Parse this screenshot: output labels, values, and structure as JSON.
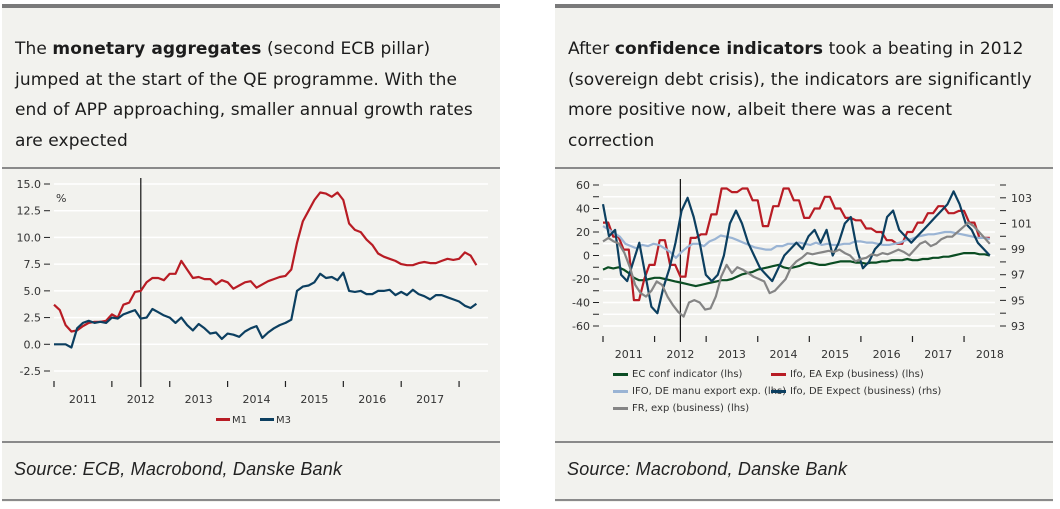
{
  "left": {
    "headline": {
      "before": "The ",
      "bold": "monetary aggregates",
      "after": " (second ECB pillar) jumped at the start of the QE programme. With the end of APP approaching, smaller annual growth rates are expected"
    },
    "source": "Source: ECB, Macrobond, Danske Bank"
  },
  "right": {
    "headline": {
      "before": "After ",
      "bold": "confidence indicators",
      "after": " took a beating in 2012 (sovereign debt crisis), the indicators are significantly more positive now, albeit there was a recent correction"
    },
    "source": "Source: Macrobond, Danske Bank"
  },
  "chart_data": [
    {
      "type": "line",
      "title": "",
      "xlabel": "",
      "ylabel": "%",
      "ylim": [
        -2.5,
        15.0
      ],
      "yticks": [
        "15.0",
        "12.5",
        "10.0",
        "7.5",
        "5.0",
        "2.5",
        "0.0",
        "-2.5"
      ],
      "ytick_values": [
        15,
        12.5,
        10,
        7.5,
        5,
        2.5,
        0,
        -2.5
      ],
      "xlim": [
        2010.5,
        2018.0
      ],
      "x_tick_labels": [
        "2011",
        "2012",
        "2013",
        "2014",
        "2015",
        "2016",
        "2017"
      ],
      "x_tick_positions": [
        2011,
        2012,
        2013,
        2014,
        2015,
        2016,
        2017
      ],
      "vertical_marker": 2012.0,
      "grid": true,
      "legend_position": "bottom",
      "colors": {
        "M1": "#b81c24",
        "M3": "#0c3f60"
      },
      "x": [
        2010.5,
        2010.6,
        2010.7,
        2010.8,
        2010.9,
        2011.0,
        2011.1,
        2011.2,
        2011.3,
        2011.4,
        2011.5,
        2011.6,
        2011.7,
        2011.8,
        2011.9,
        2012.0,
        2012.1,
        2012.2,
        2012.3,
        2012.4,
        2012.5,
        2012.6,
        2012.7,
        2012.8,
        2012.9,
        2013.0,
        2013.1,
        2013.2,
        2013.3,
        2013.4,
        2013.5,
        2013.6,
        2013.7,
        2013.8,
        2013.9,
        2014.0,
        2014.1,
        2014.2,
        2014.3,
        2014.4,
        2014.5,
        2014.6,
        2014.7,
        2014.8,
        2014.9,
        2015.0,
        2015.1,
        2015.2,
        2015.3,
        2015.4,
        2015.5,
        2015.6,
        2015.7,
        2015.8,
        2015.9,
        2016.0,
        2016.1,
        2016.2,
        2016.3,
        2016.4,
        2016.5,
        2016.6,
        2016.7,
        2016.8,
        2016.9,
        2017.0,
        2017.1,
        2017.2,
        2017.3,
        2017.4,
        2017.5,
        2017.6,
        2017.7,
        2017.8
      ],
      "series": [
        {
          "name": "M1",
          "values": [
            3.7,
            3.2,
            1.8,
            1.2,
            1.3,
            1.7,
            2.0,
            2.1,
            2.1,
            2.2,
            2.8,
            2.5,
            3.7,
            3.9,
            4.9,
            5.0,
            5.8,
            6.2,
            6.2,
            6.0,
            6.6,
            6.6,
            7.8,
            7.0,
            6.2,
            6.3,
            6.1,
            6.1,
            5.6,
            6.0,
            5.8,
            5.2,
            5.5,
            5.8,
            5.9,
            5.3,
            5.6,
            5.9,
            6.1,
            6.3,
            6.4,
            7.0,
            9.5,
            11.5,
            12.5,
            13.5,
            14.2,
            14.1,
            13.8,
            14.2,
            13.5,
            11.3,
            10.7,
            10.5,
            9.8,
            9.3,
            8.5,
            8.2,
            8.0,
            7.8,
            7.5,
            7.4,
            7.4,
            7.6,
            7.7,
            7.6,
            7.6,
            7.8,
            8.0,
            7.9,
            8.0,
            8.6,
            8.3,
            7.4
          ]
        },
        {
          "name": "M3",
          "values": [
            0.0,
            0.0,
            0.0,
            -0.3,
            1.5,
            2.0,
            2.2,
            2.0,
            2.1,
            2.0,
            2.5,
            2.4,
            2.8,
            3.0,
            3.2,
            2.4,
            2.5,
            3.3,
            3.0,
            2.7,
            2.5,
            2.0,
            2.5,
            1.8,
            1.3,
            1.9,
            1.5,
            1.0,
            1.1,
            0.5,
            1.0,
            0.9,
            0.7,
            1.2,
            1.5,
            1.7,
            0.6,
            1.1,
            1.5,
            1.8,
            2.0,
            2.3,
            5.0,
            5.4,
            5.5,
            5.8,
            6.6,
            6.2,
            6.3,
            6.0,
            6.7,
            5.0,
            4.9,
            5.0,
            4.7,
            4.7,
            5.0,
            5.0,
            5.1,
            4.6,
            4.9,
            4.6,
            5.1,
            4.7,
            4.5,
            4.2,
            4.6,
            4.6,
            4.4,
            4.2,
            4.0,
            3.6,
            3.4,
            3.8
          ]
        }
      ]
    },
    {
      "type": "line",
      "title": "",
      "xlabel": "",
      "ylabel": "",
      "ylim": [
        -60,
        60
      ],
      "yticks": [
        "60",
        "40",
        "20",
        "0",
        "-20",
        "-40",
        "-60"
      ],
      "ytick_values": [
        60,
        40,
        20,
        0,
        -20,
        -40,
        -60
      ],
      "y2lim": [
        93,
        104
      ],
      "y2ticks": [
        "103",
        "101",
        "99",
        "97",
        "95",
        "93"
      ],
      "y2tick_values": [
        103,
        101,
        99,
        97,
        95,
        93
      ],
      "xlim": [
        2010.5,
        2018.1
      ],
      "x_tick_labels": [
        "2011",
        "2012",
        "2013",
        "2014",
        "2015",
        "2016",
        "2017",
        "2018"
      ],
      "x_tick_positions": [
        2011,
        2012,
        2013,
        2014,
        2015,
        2016,
        2017,
        2018
      ],
      "vertical_marker": 2012.0,
      "grid": true,
      "legend_position": "bottom",
      "x": [
        2010.5,
        2010.6,
        2010.7,
        2010.8,
        2010.9,
        2011.0,
        2011.1,
        2011.2,
        2011.3,
        2011.4,
        2011.5,
        2011.6,
        2011.7,
        2011.8,
        2011.9,
        2012.0,
        2012.1,
        2012.2,
        2012.3,
        2012.4,
        2012.5,
        2012.6,
        2012.7,
        2012.8,
        2012.9,
        2013.0,
        2013.1,
        2013.2,
        2013.3,
        2013.4,
        2013.5,
        2013.6,
        2013.7,
        2013.8,
        2013.9,
        2014.0,
        2014.1,
        2014.2,
        2014.3,
        2014.4,
        2014.5,
        2014.6,
        2014.7,
        2014.8,
        2014.9,
        2015.0,
        2015.1,
        2015.2,
        2015.3,
        2015.4,
        2015.5,
        2015.6,
        2015.7,
        2015.8,
        2015.9,
        2016.0,
        2016.1,
        2016.2,
        2016.3,
        2016.4,
        2016.5,
        2016.6,
        2016.7,
        2016.8,
        2016.9,
        2017.0,
        2017.1,
        2017.2,
        2017.3,
        2017.4,
        2017.5,
        2017.6,
        2017.7,
        2017.8,
        2017.9,
        2018.0
      ],
      "series": [
        {
          "name": "EC conf indicator (lhs)",
          "axis": "lhs",
          "color": "#0b4d23",
          "values": [
            -12,
            -10,
            -11,
            -10,
            -12,
            -15,
            -19,
            -21,
            -21,
            -20,
            -19,
            -19,
            -20,
            -21,
            -22,
            -23,
            -24,
            -25,
            -26,
            -25,
            -24,
            -23,
            -22,
            -21,
            -21,
            -20,
            -18,
            -16,
            -15,
            -14,
            -12,
            -11,
            -10,
            -9,
            -8,
            -10,
            -11,
            -10,
            -9,
            -7,
            -6,
            -7,
            -8,
            -8,
            -7,
            -6,
            -5,
            -5,
            -5,
            -6,
            -6,
            -7,
            -6,
            -6,
            -5,
            -5,
            -4,
            -4,
            -4,
            -3,
            -4,
            -4,
            -3,
            -3,
            -2,
            -2,
            -1,
            -1,
            0,
            1,
            2,
            2,
            2,
            1,
            1,
            0
          ]
        },
        {
          "name": "Ifo, EA Exp (business) (lhs)",
          "axis": "lhs",
          "color": "#b81c24",
          "values": [
            28,
            28,
            16,
            16,
            5,
            5,
            -38,
            -38,
            -20,
            -8,
            -8,
            13,
            13,
            -8,
            -8,
            -18,
            -18,
            15,
            15,
            18,
            18,
            35,
            35,
            57,
            57,
            54,
            54,
            57,
            57,
            47,
            47,
            25,
            25,
            42,
            42,
            57,
            57,
            47,
            47,
            32,
            32,
            40,
            40,
            50,
            50,
            40,
            40,
            32,
            32,
            30,
            30,
            23,
            23,
            20,
            20,
            13,
            13,
            10,
            10,
            20,
            20,
            28,
            28,
            36,
            36,
            42,
            42,
            36,
            36,
            38,
            38,
            28,
            28,
            15,
            15,
            15
          ]
        },
        {
          "name": "IFO, DE manu export exp. (lhs)",
          "axis": "lhs",
          "color": "#9ab4d4",
          "values": [
            25,
            22,
            19,
            16,
            10,
            8,
            6,
            9,
            8,
            10,
            9,
            6,
            3,
            -2,
            3,
            7,
            10,
            10,
            8,
            12,
            14,
            17,
            16,
            15,
            13,
            11,
            9,
            7,
            6,
            5,
            5,
            8,
            8,
            10,
            10,
            11,
            10,
            9,
            11,
            9,
            10,
            9,
            9,
            10,
            10,
            12,
            12,
            11,
            11,
            10,
            9,
            9,
            10,
            11,
            13,
            14,
            16,
            17,
            18,
            18,
            19,
            20,
            20,
            19,
            18,
            17,
            16,
            15,
            15,
            14
          ]
        },
        {
          "name": "Ifo, DE Expect (business) (rhs)",
          "axis": "rhs",
          "color": "#0c3f60",
          "values": [
            102.5,
            100.0,
            100.5,
            97.0,
            96.5,
            98.0,
            99.5,
            97.0,
            94.5,
            94.0,
            96.0,
            97.5,
            99.5,
            102.0,
            103.0,
            101.5,
            99.5,
            97.0,
            96.5,
            97.0,
            98.5,
            101.0,
            102.0,
            101.0,
            99.5,
            98.5,
            97.5,
            97.0,
            96.5,
            97.5,
            98.5,
            99.0,
            99.5,
            99.0,
            100.0,
            100.5,
            99.5,
            100.5,
            98.5,
            99.5,
            101.0,
            101.5,
            99.0,
            97.5,
            98.0,
            99.0,
            99.5,
            101.5,
            102.0,
            100.5,
            100.0,
            99.5,
            100.0,
            100.5,
            101.0,
            101.5,
            102.0,
            102.5,
            103.5,
            102.5,
            101.0,
            100.5,
            99.5,
            99.0,
            98.5
          ]
        },
        {
          "name": "FR, exp (business) (lhs)",
          "axis": "lhs",
          "color": "#858585",
          "values": [
            12,
            15,
            12,
            10,
            2,
            -10,
            -25,
            -32,
            -35,
            -30,
            -22,
            -25,
            -35,
            -42,
            -48,
            -52,
            -40,
            -38,
            -40,
            -46,
            -45,
            -35,
            -18,
            -8,
            -15,
            -10,
            -12,
            -15,
            -18,
            -20,
            -22,
            -32,
            -30,
            -25,
            -20,
            -10,
            -5,
            -2,
            2,
            1,
            2,
            3,
            4,
            3,
            5,
            2,
            0,
            -5,
            -3,
            -2,
            1,
            0,
            2,
            1,
            3,
            5,
            3,
            0,
            5,
            10,
            12,
            8,
            10,
            14,
            16,
            16,
            20,
            24,
            28,
            25,
            20,
            15,
            10
          ]
        }
      ]
    }
  ],
  "legend_left": [
    "M1",
    "M3"
  ],
  "legend_right": [
    {
      "label": "EC conf indicator (lhs)",
      "color": "#0b4d23"
    },
    {
      "label": "Ifo, EA Exp (business) (lhs)",
      "color": "#b81c24"
    },
    {
      "label": "IFO, DE manu export exp. (lhs)",
      "color": "#9ab4d4"
    },
    {
      "label": "Ifo, DE Expect (business) (rhs)",
      "color": "#0c3f60"
    },
    {
      "label": "FR, exp (business) (lhs)",
      "color": "#858585"
    }
  ]
}
